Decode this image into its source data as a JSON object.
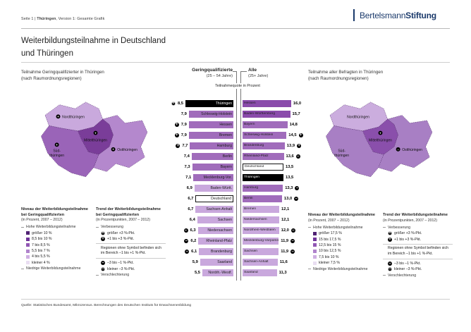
{
  "header": {
    "meta_page": "Seite 1  |  ",
    "meta_region": "Thüringen",
    "meta_version": ", Version 1: Gesamte Grafik",
    "logo_part1": "Bertelsmann",
    "logo_part2": "Stiftung"
  },
  "title": {
    "line1": "Weiterbildungsteilnahme in Deutschland",
    "line2": "und Thüringen"
  },
  "colors": {
    "bar_dark": "#8a4bab",
    "bar_mid": "#a06cbb",
    "bar_light": "#c9a8dd",
    "bar_black": "#000000",
    "bar_white": "#ffffff",
    "logo_navy": "#1b3a6b"
  },
  "trend_glyphs": {
    "up-strong": "+",
    "up": "+",
    "down": "–",
    "down-strong": "–"
  },
  "maps": {
    "left": {
      "title_line1": "Teilnahme Geringqualifizierter in Thüringen",
      "title_line2": "(nach Raumordnungsregionen)",
      "regions": [
        {
          "name": "Nordthüringen",
          "color": "#c9a9dd",
          "trend": "up"
        },
        {
          "name": "Mittelthüringen",
          "color": "#7a3d99",
          "trend": "up"
        },
        {
          "name": "Südthüringen",
          "label_lines": [
            "Süd-",
            "thüringen"
          ],
          "color": "#9a64b8",
          "trend": "up"
        },
        {
          "name": "Ostthüringen",
          "color": "#b488cd",
          "trend": "up"
        }
      ]
    },
    "right": {
      "title_line1": "Teilnahme aller Befragten in Thüringen",
      "title_line2": "(nach Raumordnungsregionen)",
      "regions": [
        {
          "name": "Nordthüringen",
          "color": "#cbadde",
          "trend": null
        },
        {
          "name": "Mittelthüringen",
          "color": "#8a4fab",
          "trend": "up"
        },
        {
          "name": "Südthüringen",
          "label_lines": [
            "Süd-",
            "thüringen"
          ],
          "color": "#a87fc4",
          "trend": null
        },
        {
          "name": "Ostthüringen",
          "color": "#a87fc4",
          "trend": "down"
        }
      ]
    }
  },
  "chart_data": {
    "type": "bar",
    "axis_label": "Teilnahmequote in Prozent",
    "groups": [
      {
        "header": "Geringqualifizierte",
        "subheader": "(25 – 54 Jahre)",
        "unit": "Prozent",
        "rows": [
          {
            "label": "Thüringen",
            "value": 8.5,
            "display": "8,5",
            "tone": "black",
            "trend": "up-strong"
          },
          {
            "label": "Schleswig-Holstein",
            "value": 7.9,
            "display": "7,9",
            "tone": "mid",
            "trend": null
          },
          {
            "label": "Hessen",
            "value": 7.9,
            "display": "7,9",
            "tone": "mid",
            "trend": "up"
          },
          {
            "label": "Bremen",
            "value": 7.9,
            "display": "7,9",
            "tone": "mid",
            "trend": "up"
          },
          {
            "label": "Hamburg",
            "value": 7.7,
            "display": "7,7",
            "tone": "mid",
            "trend": "up"
          },
          {
            "label": "Berlin",
            "value": 7.4,
            "display": "7,4",
            "tone": "mid",
            "trend": null
          },
          {
            "label": "Bayern",
            "value": 7.3,
            "display": "7,3",
            "tone": "mid",
            "trend": null
          },
          {
            "label": "Mecklenburg-Vor.",
            "value": 7.1,
            "display": "7,1",
            "tone": "mid",
            "trend": null
          },
          {
            "label": "Baden-Württ.",
            "value": 6.9,
            "display": "6,9",
            "tone": "light",
            "trend": null
          },
          {
            "label": "Deutschland",
            "value": 6.7,
            "display": "6,7",
            "tone": "white",
            "trend": null
          },
          {
            "label": "Sachsen-Anhalt",
            "value": 6.7,
            "display": "6,7",
            "tone": "light",
            "trend": null
          },
          {
            "label": "Sachsen",
            "value": 6.4,
            "display": "6,4",
            "tone": "light",
            "trend": null
          },
          {
            "label": "Niedersachsen",
            "value": 6.3,
            "display": "6,3",
            "tone": "light",
            "trend": "down"
          },
          {
            "label": "Rheinland-Pfalz",
            "value": 6.2,
            "display": "6,2",
            "tone": "light",
            "trend": "down"
          },
          {
            "label": "Brandenburg",
            "value": 6.1,
            "display": "6,1",
            "tone": "light",
            "trend": "down"
          },
          {
            "label": "Saarland",
            "value": 5.9,
            "display": "5,9",
            "tone": "light",
            "trend": null
          },
          {
            "label": "Nordrh.-Westf.",
            "value": 5.5,
            "display": "5,5",
            "tone": "light",
            "trend": null
          }
        ]
      },
      {
        "header": "Alle",
        "subheader": "(25+ Jahre)",
        "unit": "Prozent",
        "rows": [
          {
            "label": "Hessen",
            "value": 16.0,
            "display": "16,0",
            "tone": "dark",
            "trend": null
          },
          {
            "label": "Baden-Württemberg",
            "value": 15.7,
            "display": "15,7",
            "tone": "dark",
            "trend": null
          },
          {
            "label": "Bayern",
            "value": 14.8,
            "display": "14,8",
            "tone": "mid",
            "trend": null
          },
          {
            "label": "Schleswig-Holstein",
            "value": 14.5,
            "display": "14,5",
            "tone": "mid",
            "trend": "up"
          },
          {
            "label": "Brandenburg",
            "value": 13.9,
            "display": "13,9",
            "tone": "mid",
            "trend": "up"
          },
          {
            "label": "Rheinland-Pfalz",
            "value": 13.6,
            "display": "13,6",
            "tone": "mid",
            "trend": "down"
          },
          {
            "label": "Deutschland",
            "value": 13.5,
            "display": "13,5",
            "tone": "white",
            "trend": null
          },
          {
            "label": "Thüringen",
            "value": 13.5,
            "display": "13,5",
            "tone": "black",
            "trend": null
          },
          {
            "label": "Hamburg",
            "value": 13.3,
            "display": "13,3",
            "tone": "mid",
            "trend": "down"
          },
          {
            "label": "Berlin",
            "value": 13.0,
            "display": "13,0",
            "tone": "mid",
            "trend": "down"
          },
          {
            "label": "Bremen",
            "value": 12.1,
            "display": "12,1",
            "tone": "light",
            "trend": null
          },
          {
            "label": "Niedersachsen",
            "value": 12.1,
            "display": "12,1",
            "tone": "light",
            "trend": null
          },
          {
            "label": "Nordrhein-Westfalen",
            "value": 12.0,
            "display": "12,0",
            "tone": "light",
            "trend": "down"
          },
          {
            "label": "Mecklenburg-Vorpommern",
            "value": 11.9,
            "display": "11,9",
            "tone": "light",
            "trend": "down"
          },
          {
            "label": "Sachsen",
            "value": 11.9,
            "display": "11,9",
            "tone": "light",
            "trend": "down"
          },
          {
            "label": "Sachsen-Anhalt",
            "value": 11.6,
            "display": "11,6",
            "tone": "light",
            "trend": null
          },
          {
            "label": "Saarland",
            "value": 11.3,
            "display": "11,3",
            "tone": "light",
            "trend": null
          }
        ]
      }
    ]
  },
  "legends": {
    "left_niveau": {
      "title": "Niveau der Weiterbildungs­teilnahme bei Geringqualifizierten",
      "subtitle": "(in Prozent, 2007 – 2012)",
      "high_label": "Hohe Weiterbildungsteilnahme",
      "low_label": "Niedrige Weiterbildungsteilnahme",
      "items": [
        {
          "color": "#4f2173",
          "label": "größer 10 %"
        },
        {
          "color": "#6f3399",
          "label": "8,5 bis 10 %"
        },
        {
          "color": "#9156b4",
          "label": "7 bis 8,5 %"
        },
        {
          "color": "#b083cc",
          "label": "5,5 bis 7 %"
        },
        {
          "color": "#cfafe2",
          "label": "4 bis 5,5 %"
        },
        {
          "color": "#e9def2",
          "label": "kleiner 4 %"
        }
      ]
    },
    "left_trend": {
      "title": "Trend der Weiterbildungs­teilnahme bei Geringqualifizierten",
      "subtitle": "(in Prozentpunkten, 2007 – 2012)",
      "improve_label": "Verbesserung",
      "worsen_label": "Verschlechterung",
      "items_positive": [
        {
          "trend": "up-strong",
          "label": "größer +3 %-Pkt."
        },
        {
          "trend": "up",
          "label": "+1 bis +3 %-Pkt."
        }
      ],
      "note": "Regionen ohne Symbol befinden sich im Bereich –1 bis +1 %-Pkt.",
      "items_negative": [
        {
          "trend": "down",
          "label": "–3 bis –1 %-Pkt."
        },
        {
          "trend": "down-strong",
          "label": "kleiner –3 %-Pkt."
        }
      ]
    },
    "right_niveau": {
      "title": "Niveau der Weiterbildungs­teilnahme",
      "subtitle": "(in Prozent, 2007 – 2012)",
      "high_label": "Hohe Weiterbildungsteilnahme",
      "low_label": "Niedrige Weiterbildungsteilnahme",
      "items": [
        {
          "color": "#4f2173",
          "label": "größer 17,5 %"
        },
        {
          "color": "#6f3399",
          "label": "15 bis 17,5 %"
        },
        {
          "color": "#9156b4",
          "label": "12,5 bis 15 %"
        },
        {
          "color": "#b083cc",
          "label": "10 bis 12,5 %"
        },
        {
          "color": "#cfafe2",
          "label": "7,5 bis 10 %"
        },
        {
          "color": "#e9def2",
          "label": "kleiner 7,5 %"
        }
      ]
    },
    "right_trend": {
      "title": "Trend der Weiterbildungsteilnahme",
      "subtitle": "(in Prozentpunkten, 2007 – 2012)",
      "improve_label": "Verbesserung",
      "worsen_label": "Verschlechterung",
      "items_positive": [
        {
          "trend": "up-strong",
          "label": "größer +3 %-Pkt."
        },
        {
          "trend": "up",
          "label": "+1 bis +3 %-Pkt."
        }
      ],
      "note": "Regionen ohne Symbol befinden sich im Bereich –1 bis +1 %-Pkt.",
      "items_negative": [
        {
          "trend": "down",
          "label": "–3 bis –1 %-Pkt."
        },
        {
          "trend": "down-strong",
          "label": "kleiner –3 %-Pkt."
        }
      ]
    }
  },
  "footer": {
    "source": "Quelle: Statistisches Bundesamt, Mikrozensus. Berechnungen des Deutschen Instituts für Erwachsenenbildung"
  }
}
